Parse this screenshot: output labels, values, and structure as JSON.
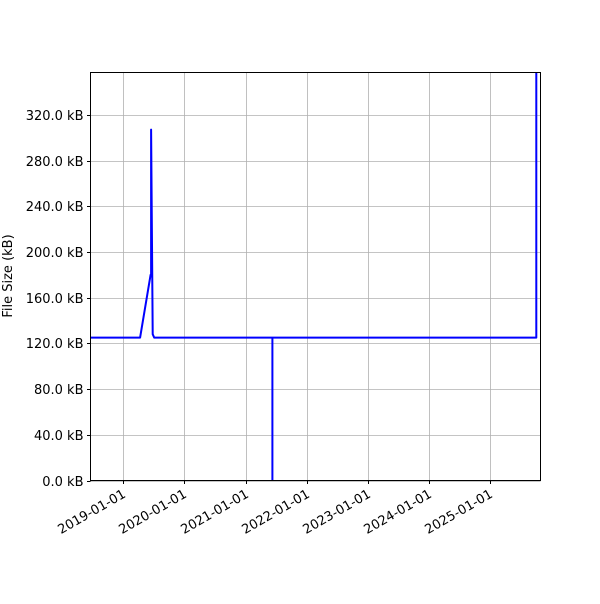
{
  "chart_data": {
    "type": "line",
    "title": "",
    "xlabel": "",
    "ylabel": "File Size (kB)",
    "x_type": "date",
    "xlim": [
      "2018-06-20",
      "2025-10-27"
    ],
    "ylim": [
      0,
      357
    ],
    "grid": true,
    "line_color": "#0000ff",
    "x_ticks": [
      "2019-01-01",
      "2020-01-01",
      "2021-01-01",
      "2022-01-01",
      "2023-01-01",
      "2024-01-01",
      "2025-01-01"
    ],
    "y_ticks": [
      0,
      40,
      80,
      120,
      160,
      200,
      240,
      280,
      320
    ],
    "y_tick_labels": [
      "0.0 kB",
      "40.0 kB",
      "80.0 kB",
      "120.0 kB",
      "160.0 kB",
      "200.0 kB",
      "240.0 kB",
      "280.0 kB",
      "320.0 kB"
    ],
    "series": [
      {
        "x": [
          "2018-06-20",
          "2019-04-12",
          "2019-06-14",
          "2019-06-17",
          "2019-06-17",
          "2019-06-26",
          "2019-07-05",
          "2021-06-10",
          "2021-06-10",
          "2021-06-10",
          "2025-10-02",
          "2025-10-02"
        ],
        "y": [
          125,
          125,
          180,
          180,
          307,
          128,
          125,
          125,
          0,
          125,
          125,
          360
        ]
      }
    ]
  }
}
